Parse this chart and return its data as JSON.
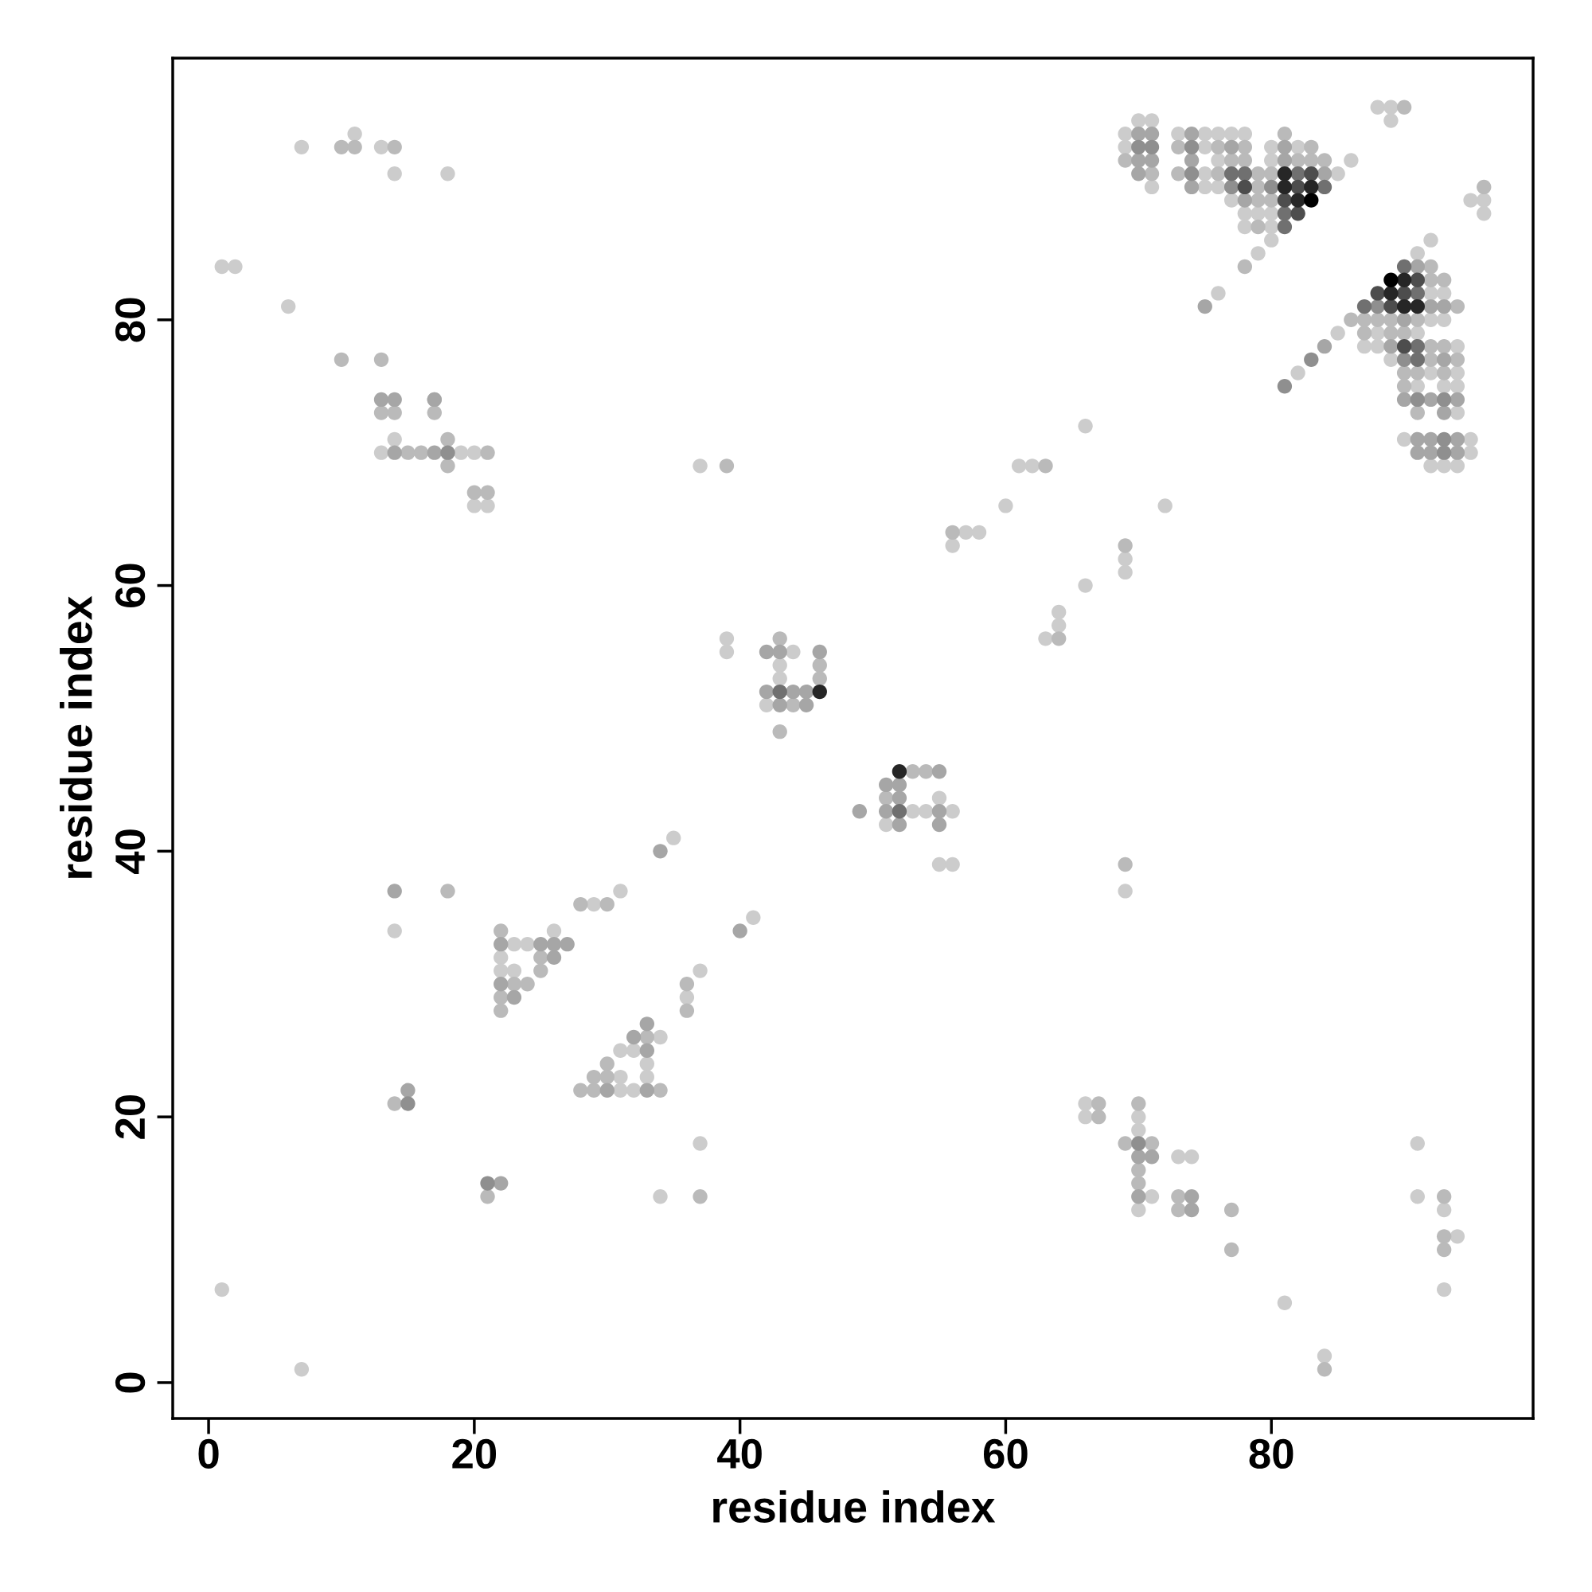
{
  "chart_data": {
    "type": "scatter",
    "xlabel": "residue index",
    "ylabel": "residue index",
    "xlim": [
      -2.7,
      99.7
    ],
    "ylim": [
      -2.7,
      99.7
    ],
    "xticks": [
      0,
      20,
      40,
      60,
      80
    ],
    "yticks": [
      0,
      20,
      40,
      60,
      80
    ],
    "grid": false,
    "marker": "circle",
    "series": [
      {
        "color": "#cccccc",
        "x": [
          88,
          89,
          70,
          71,
          89,
          69,
          73,
          75,
          76,
          77,
          78,
          69,
          75,
          80,
          82,
          76,
          80,
          86,
          75,
          85,
          71,
          75,
          76,
          77,
          95,
          96,
          78,
          79,
          80,
          96,
          78,
          80,
          80,
          92,
          79,
          91,
          92,
          93,
          92,
          93,
          85,
          88,
          91,
          87,
          88,
          94,
          89,
          82,
          92,
          94,
          91,
          93,
          94,
          94,
          90,
          95,
          95,
          92,
          93,
          94,
          76,
          7,
          11,
          13,
          14,
          18,
          1,
          2,
          6,
          14,
          13,
          19,
          20,
          20,
          21,
          37,
          66,
          61,
          62,
          60,
          57,
          58,
          56,
          69,
          69,
          66,
          64,
          64,
          63,
          39,
          39,
          44,
          43,
          43,
          51,
          53,
          54,
          56,
          55,
          55,
          56,
          69,
          42,
          72,
          35,
          14,
          31,
          29,
          41,
          26,
          23,
          24,
          22,
          22,
          23,
          37,
          36,
          34,
          31,
          32,
          33,
          31,
          33,
          31,
          32,
          37,
          34,
          1,
          7,
          66,
          66,
          70,
          70,
          71,
          70,
          81,
          84,
          91,
          91,
          93,
          94,
          93,
          73,
          74
        ],
        "values": [
          96,
          96,
          95,
          95,
          95,
          94,
          94,
          94,
          94,
          94,
          94,
          93,
          93,
          93,
          93,
          92,
          92,
          92,
          91,
          91,
          90,
          90,
          90,
          89,
          89,
          89,
          88,
          88,
          88,
          88,
          87,
          87,
          86,
          86,
          85,
          85,
          82,
          82,
          80,
          80,
          79,
          79,
          79,
          78,
          78,
          78,
          77,
          76,
          76,
          76,
          75,
          75,
          75,
          73,
          71,
          71,
          70,
          69,
          69,
          69,
          82,
          93,
          94,
          93,
          91,
          91,
          84,
          84,
          81,
          71,
          70,
          70,
          70,
          66,
          66,
          69,
          72,
          69,
          69,
          66,
          64,
          64,
          63,
          62,
          61,
          60,
          58,
          57,
          56,
          56,
          55,
          55,
          54,
          53,
          42,
          43,
          43,
          43,
          44,
          39,
          39,
          37,
          51,
          66,
          41,
          34,
          37,
          36,
          35,
          34,
          33,
          33,
          32,
          31,
          31,
          31,
          29,
          26,
          25,
          25,
          24,
          23,
          23,
          22,
          22,
          18,
          14,
          7,
          1,
          21,
          20,
          20,
          19,
          14,
          13,
          6,
          2,
          18,
          14,
          13,
          11,
          7,
          17,
          17
        ]
      },
      {
        "color": "#bababa",
        "x": [
          90,
          81,
          73,
          76,
          78,
          83,
          69,
          77,
          78,
          82,
          83,
          84,
          71,
          73,
          76,
          79,
          80,
          79,
          96,
          79,
          80,
          79,
          78,
          92,
          92,
          93,
          94,
          86,
          87,
          88,
          89,
          91,
          87,
          89,
          90,
          92,
          93,
          92,
          94,
          90,
          91,
          93,
          90,
          91,
          10,
          11,
          14,
          10,
          13,
          13,
          14,
          17,
          17,
          18,
          15,
          16,
          21,
          18,
          20,
          21,
          39,
          63,
          56,
          69,
          64,
          43,
          46,
          46,
          44,
          43,
          53,
          54,
          51,
          69,
          18,
          28,
          30,
          22,
          25,
          25,
          23,
          24,
          22,
          22,
          36,
          36,
          33,
          30,
          29,
          30,
          28,
          29,
          34,
          14,
          21,
          37,
          67,
          67,
          70,
          69,
          71,
          70,
          70,
          73,
          73,
          77,
          77,
          84,
          93,
          93,
          93
        ],
        "values": [
          96,
          94,
          93,
          93,
          93,
          93,
          92,
          92,
          92,
          92,
          92,
          92,
          91,
          91,
          91,
          91,
          91,
          90,
          90,
          89,
          89,
          87,
          84,
          84,
          83,
          83,
          81,
          80,
          80,
          80,
          80,
          80,
          79,
          79,
          79,
          78,
          78,
          77,
          77,
          76,
          76,
          76,
          75,
          73,
          93,
          93,
          93,
          77,
          77,
          73,
          73,
          74,
          73,
          71,
          70,
          70,
          70,
          69,
          67,
          67,
          69,
          69,
          64,
          63,
          56,
          56,
          54,
          53,
          51,
          49,
          46,
          46,
          44,
          39,
          37,
          36,
          36,
          34,
          32,
          31,
          30,
          30,
          29,
          28,
          30,
          28,
          26,
          24,
          23,
          23,
          22,
          22,
          22,
          21,
          14,
          14,
          21,
          20,
          21,
          18,
          18,
          16,
          15,
          14,
          13,
          13,
          10,
          1,
          14,
          11,
          10
        ]
      },
      {
        "color": "#a6a6a6",
        "x": [
          70,
          71,
          74,
          77,
          81,
          70,
          71,
          74,
          81,
          70,
          84,
          74,
          78,
          91,
          75,
          92,
          93,
          90,
          89,
          84,
          93,
          90,
          92,
          94,
          93,
          91,
          92,
          94,
          91,
          92,
          94,
          13,
          14,
          17,
          14,
          17,
          42,
          43,
          46,
          42,
          44,
          45,
          43,
          45,
          51,
          52,
          52,
          49,
          51,
          55,
          52,
          55,
          55,
          34,
          14,
          40,
          22,
          25,
          26,
          27,
          26,
          22,
          23,
          33,
          32,
          33,
          30,
          33,
          15,
          22,
          70,
          71,
          70,
          74,
          74
        ],
        "values": [
          94,
          94,
          94,
          93,
          93,
          92,
          92,
          92,
          92,
          91,
          91,
          90,
          89,
          84,
          81,
          81,
          81,
          80,
          78,
          78,
          77,
          74,
          74,
          74,
          73,
          71,
          71,
          71,
          70,
          70,
          70,
          74,
          74,
          74,
          70,
          70,
          55,
          55,
          55,
          52,
          52,
          52,
          51,
          51,
          45,
          45,
          44,
          43,
          43,
          43,
          42,
          42,
          46,
          40,
          37,
          34,
          33,
          33,
          33,
          33,
          32,
          30,
          29,
          27,
          26,
          25,
          22,
          22,
          22,
          15,
          17,
          17,
          14,
          14,
          13
        ]
      },
      {
        "color": "#8f8f8f",
        "x": [
          70,
          71,
          74,
          74,
          77,
          80,
          88,
          90,
          91,
          93,
          93,
          93,
          83,
          81,
          18,
          15,
          21,
          70
        ],
        "values": [
          93,
          93,
          93,
          91,
          90,
          90,
          81,
          77,
          74,
          74,
          71,
          70,
          77,
          75,
          70,
          21,
          15,
          18
        ]
      },
      {
        "color": "#707070",
        "x": [
          77,
          78,
          82,
          84,
          81,
          81,
          90,
          91,
          87,
          91,
          91,
          43,
          52
        ],
        "values": [
          91,
          91,
          91,
          90,
          88,
          87,
          84,
          82,
          81,
          78,
          77,
          52,
          43
        ]
      },
      {
        "color": "#4d4d4d",
        "x": [
          83,
          78,
          82,
          81,
          82,
          91,
          88,
          90,
          89,
          90
        ],
        "values": [
          91,
          90,
          90,
          89,
          88,
          83,
          82,
          82,
          81,
          78
        ]
      },
      {
        "color": "#262626",
        "x": [
          81,
          81,
          83,
          82,
          90,
          89,
          90,
          91,
          46,
          52
        ],
        "values": [
          91,
          90,
          90,
          89,
          83,
          82,
          81,
          81,
          52,
          46
        ]
      },
      {
        "color": "#000000",
        "x": [
          83,
          89
        ],
        "values": [
          89,
          83
        ]
      }
    ]
  }
}
